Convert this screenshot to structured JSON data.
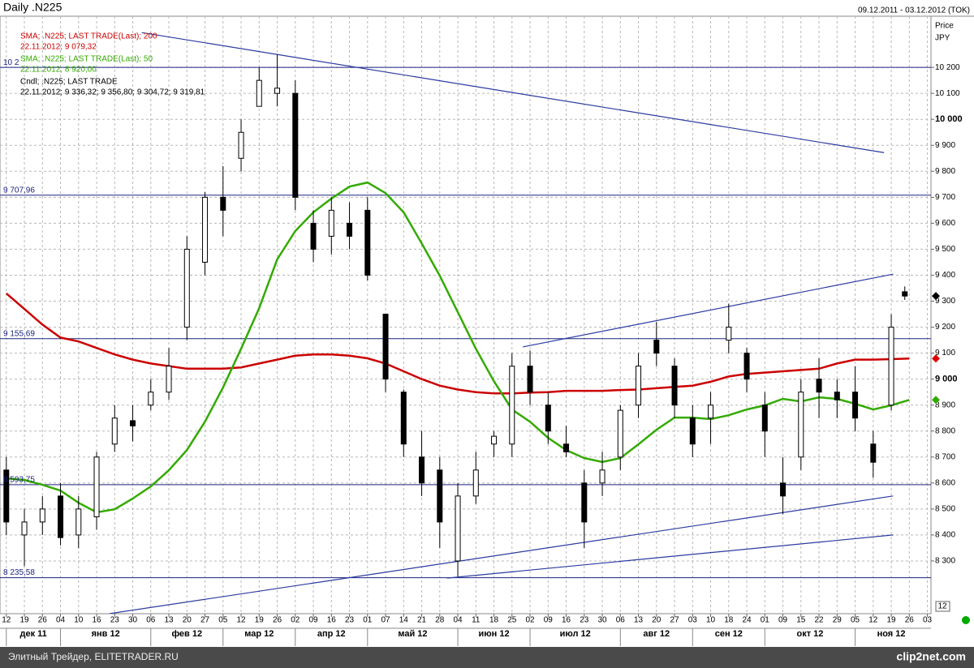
{
  "chart_data": {
    "type": "candlestick",
    "title": "Daily .N225",
    "period": "09.12.2011 - 03.12.2012 (TOK)",
    "axis_label": "Price",
    "currency": "JPY",
    "legend": [
      {
        "name": "SMA; .N225; LAST TRADE(Last); 200",
        "detail": "22.11.2012; 9 079,32",
        "color": "#cc0000"
      },
      {
        "name": "SMA; .N225; LAST TRADE(Last); 50",
        "detail": "22.11.2012; 8 920,00",
        "color": "#33aa00"
      },
      {
        "name": "Cndl; .N225; LAST TRADE",
        "detail": "22.11.2012; 9 336,32; 9 356,80; 9 304,72; 9 319,81",
        "color": "#000000"
      }
    ],
    "xlim": [
      -0.35,
      51.2
    ],
    "xticks": [
      {
        "value": 0,
        "label": "12"
      },
      {
        "value": 1,
        "label": "19"
      },
      {
        "value": 2,
        "label": "26"
      },
      {
        "value": 3,
        "label": "04"
      },
      {
        "value": 4,
        "label": "10"
      },
      {
        "value": 5,
        "label": "16"
      },
      {
        "value": 6,
        "label": "23"
      },
      {
        "value": 7,
        "label": "30"
      },
      {
        "value": 8,
        "label": "06"
      },
      {
        "value": 9,
        "label": "13"
      },
      {
        "value": 10,
        "label": "20"
      },
      {
        "value": 11,
        "label": "27"
      },
      {
        "value": 12,
        "label": "05"
      },
      {
        "value": 13,
        "label": "12"
      },
      {
        "value": 14,
        "label": "19"
      },
      {
        "value": 15,
        "label": "26"
      },
      {
        "value": 16,
        "label": "02"
      },
      {
        "value": 17,
        "label": "09"
      },
      {
        "value": 18,
        "label": "16"
      },
      {
        "value": 19,
        "label": "23"
      },
      {
        "value": 20,
        "label": "01"
      },
      {
        "value": 21,
        "label": "07"
      },
      {
        "value": 22,
        "label": "14"
      },
      {
        "value": 23,
        "label": "21"
      },
      {
        "value": 24,
        "label": "28"
      },
      {
        "value": 25,
        "label": "04"
      },
      {
        "value": 26,
        "label": "11"
      },
      {
        "value": 27,
        "label": "18"
      },
      {
        "value": 28,
        "label": "25"
      },
      {
        "value": 29,
        "label": "02"
      },
      {
        "value": 30,
        "label": "09"
      },
      {
        "value": 31,
        "label": "16"
      },
      {
        "value": 32,
        "label": "23"
      },
      {
        "value": 33,
        "label": "30"
      },
      {
        "value": 34,
        "label": "06"
      },
      {
        "value": 35,
        "label": "13"
      },
      {
        "value": 36,
        "label": "20"
      },
      {
        "value": 37,
        "label": "27"
      },
      {
        "value": 38,
        "label": "03"
      },
      {
        "value": 39,
        "label": "10"
      },
      {
        "value": 40,
        "label": "18"
      },
      {
        "value": 41,
        "label": "24"
      },
      {
        "value": 42,
        "label": "01"
      },
      {
        "value": 43,
        "label": "09"
      },
      {
        "value": 44,
        "label": "15"
      },
      {
        "value": 45,
        "label": "22"
      },
      {
        "value": 46,
        "label": "29"
      },
      {
        "value": 47,
        "label": "05"
      },
      {
        "value": 48,
        "label": "12"
      },
      {
        "value": 49,
        "label": "19"
      },
      {
        "value": 50,
        "label": "26"
      },
      {
        "value": 51,
        "label": "03"
      }
    ],
    "months": [
      {
        "label": "дек 11",
        "from": 0,
        "to": 3
      },
      {
        "label": "янв 12",
        "from": 3,
        "to": 8
      },
      {
        "label": "фев 12",
        "from": 8,
        "to": 12
      },
      {
        "label": "мар 12",
        "from": 12,
        "to": 16
      },
      {
        "label": "апр 12",
        "from": 16,
        "to": 20
      },
      {
        "label": "май 12",
        "from": 20,
        "to": 25
      },
      {
        "label": "июн 12",
        "from": 25,
        "to": 29
      },
      {
        "label": "июл 12",
        "from": 29,
        "to": 34
      },
      {
        "label": "авг 12",
        "from": 34,
        "to": 38
      },
      {
        "label": "сен 12",
        "from": 38,
        "to": 42
      },
      {
        "label": "окт 12",
        "from": 42,
        "to": 47
      },
      {
        "label": "ноя 12",
        "from": 47,
        "to": 51
      }
    ],
    "ylim": [
      8097,
      10397
    ],
    "yticks": [
      {
        "value": 8300,
        "label": "8 300"
      },
      {
        "value": 8400,
        "label": "8 400"
      },
      {
        "value": 8500,
        "label": "8 500"
      },
      {
        "value": 8600,
        "label": "8 600"
      },
      {
        "value": 8700,
        "label": "8 700"
      },
      {
        "value": 8800,
        "label": "8 800"
      },
      {
        "value": 8900,
        "label": "8 900"
      },
      {
        "value": 9000,
        "label": "9 000"
      },
      {
        "value": 9100,
        "label": "9 100"
      },
      {
        "value": 9200,
        "label": "9 200"
      },
      {
        "value": 9300,
        "label": "9 300"
      },
      {
        "value": 9400,
        "label": "9 400"
      },
      {
        "value": 9500,
        "label": "9 500"
      },
      {
        "value": 9600,
        "label": "9 600"
      },
      {
        "value": 9700,
        "label": "9 700"
      },
      {
        "value": 9800,
        "label": "9 800"
      },
      {
        "value": 9900,
        "label": "9 900"
      },
      {
        "value": 10000,
        "label": "10 000"
      },
      {
        "value": 10100,
        "label": "10 100"
      },
      {
        "value": 10200,
        "label": "10 200"
      }
    ],
    "grid": true,
    "levels": [
      {
        "value": 10200,
        "label": "10 2"
      },
      {
        "value": 9707.96,
        "label": "9 707,96"
      },
      {
        "value": 9155.69,
        "label": "9 155,69"
      },
      {
        "value": 8593.75,
        "label": "8 593,75"
      },
      {
        "value": 8235.58,
        "label": "8 235,58"
      }
    ],
    "trendlines": [
      {
        "x": [
          7.5,
          48.6
        ],
        "y": [
          10334,
          9872
        ]
      },
      {
        "x": [
          28.6,
          49.1
        ],
        "y": [
          9124,
          9404
        ]
      },
      {
        "x": [
          5.7,
          49.1
        ],
        "y": [
          8097,
          8550
        ]
      },
      {
        "x": [
          24.4,
          49.1
        ],
        "y": [
          8234,
          8400
        ]
      }
    ],
    "candles": {
      "x": [
        0,
        1,
        2,
        3,
        4,
        5,
        6,
        7,
        8,
        9,
        10,
        11,
        12,
        13,
        14,
        15,
        16,
        17,
        18,
        19,
        20,
        21,
        22,
        23,
        24,
        25,
        26,
        27,
        28,
        29,
        30,
        31,
        32,
        33,
        34,
        35,
        36,
        37,
        38,
        39,
        40,
        41,
        42,
        43,
        44,
        45,
        46,
        47,
        48,
        49,
        49.75
      ],
      "open": [
        8650,
        8400,
        8450,
        8550,
        8400,
        8470,
        8750,
        8840,
        8900,
        8950,
        9200,
        9450,
        9700,
        9850,
        10050,
        10100,
        10100,
        9600,
        9550,
        9600,
        9650,
        9250,
        8950,
        8700,
        8650,
        8300,
        8550,
        8750,
        8750,
        9050,
        8900,
        8750,
        8600,
        8600,
        8700,
        8900,
        9150,
        9050,
        8850,
        8850,
        9150,
        9100,
        8900,
        8600,
        8700,
        9000,
        8950,
        8950,
        8750,
        8900,
        9336.32
      ],
      "high": [
        8700,
        8500,
        8550,
        8600,
        8550,
        8720,
        8900,
        8900,
        9000,
        9120,
        9550,
        9720,
        9820,
        10000,
        10200,
        10250,
        10150,
        9650,
        9700,
        9680,
        9700,
        9250,
        8960,
        8800,
        8700,
        8600,
        8720,
        8800,
        9100,
        9110,
        8950,
        8820,
        8650,
        8720,
        8900,
        9100,
        9220,
        9080,
        8900,
        8950,
        9290,
        9120,
        8950,
        8700,
        9000,
        9080,
        9000,
        9050,
        8800,
        9250,
        9356.8
      ],
      "low": [
        8400,
        8280,
        8400,
        8360,
        8350,
        8420,
        8720,
        8760,
        8880,
        8920,
        9150,
        9400,
        9550,
        9800,
        10050,
        10050,
        9650,
        9450,
        9480,
        9500,
        9380,
        8950,
        8700,
        8550,
        8350,
        8240,
        8520,
        8700,
        8700,
        8900,
        8750,
        8700,
        8350,
        8550,
        8650,
        8850,
        9050,
        8850,
        8700,
        8750,
        9100,
        8950,
        8700,
        8480,
        8650,
        8850,
        8850,
        8800,
        8620,
        8880,
        9304.72
      ],
      "close": [
        8450,
        8450,
        8500,
        8390,
        8500,
        8700,
        8850,
        8820,
        8950,
        9050,
        9500,
        9700,
        9650,
        9950,
        10150,
        10120,
        9700,
        9500,
        9650,
        9550,
        9400,
        9000,
        8750,
        8600,
        8450,
        8550,
        8650,
        8780,
        9050,
        8950,
        8800,
        8720,
        8450,
        8650,
        8880,
        9050,
        9100,
        8900,
        8750,
        8900,
        9200,
        9000,
        8800,
        8550,
        8950,
        8950,
        8920,
        8850,
        8680,
        9200,
        9319.81
      ]
    },
    "series": [
      {
        "name": "SMA 200",
        "color": "#cc0000",
        "x": [
          0,
          1,
          2,
          3,
          4,
          5,
          6,
          7,
          8,
          9,
          10,
          11,
          12,
          13,
          14,
          15,
          16,
          17,
          18,
          19,
          20,
          21,
          22,
          23,
          24,
          25,
          26,
          27,
          28,
          29,
          30,
          31,
          32,
          33,
          34,
          35,
          36,
          37,
          38,
          39,
          40,
          41,
          42,
          43,
          44,
          45,
          46,
          47,
          48,
          49,
          50
        ],
        "values": [
          9330,
          9270,
          9210,
          9160,
          9145,
          9120,
          9095,
          9075,
          9060,
          9050,
          9040,
          9040,
          9040,
          9045,
          9060,
          9075,
          9090,
          9095,
          9095,
          9090,
          9080,
          9060,
          9030,
          9000,
          8975,
          8960,
          8950,
          8945,
          8945,
          8948,
          8950,
          8955,
          8955,
          8955,
          8958,
          8960,
          8965,
          8970,
          8975,
          8990,
          9010,
          9020,
          9025,
          9030,
          9035,
          9040,
          9060,
          9075,
          9075,
          9077,
          9079
        ]
      },
      {
        "name": "SMA 50",
        "color": "#33aa00",
        "x": [
          0,
          1,
          2,
          3,
          4,
          5,
          6,
          7,
          8,
          9,
          10,
          11,
          12,
          13,
          14,
          15,
          16,
          17,
          18,
          19,
          20,
          21,
          22,
          23,
          24,
          25,
          26,
          27,
          28,
          29,
          30,
          31,
          32,
          33,
          34,
          35,
          36,
          37,
          38,
          39,
          40,
          41,
          42,
          43,
          44,
          45,
          46,
          47,
          48,
          49,
          50
        ],
        "values": [
          8618,
          8612,
          8593,
          8571,
          8524,
          8487,
          8499,
          8540,
          8587,
          8649,
          8727,
          8836,
          8968,
          9117,
          9273,
          9461,
          9570,
          9642,
          9695,
          9741,
          9757,
          9716,
          9642,
          9523,
          9398,
          9258,
          9117,
          8992,
          8883,
          8836,
          8774,
          8727,
          8696,
          8681,
          8696,
          8749,
          8805,
          8852,
          8852,
          8846,
          8861,
          8883,
          8899,
          8924,
          8914,
          8930,
          8924,
          8905,
          8883,
          8899,
          8920
        ]
      }
    ],
    "last_markers": [
      {
        "value": 9319.81,
        "color": "#000000"
      },
      {
        "value": 9079.32,
        "color": "#dd0000"
      },
      {
        "value": 8920,
        "color": "#33aa00"
      }
    ],
    "page_number": "12",
    "footer": "Элитный Трейдер, ELITETRADER.RU",
    "brand": "clip2net.com"
  }
}
